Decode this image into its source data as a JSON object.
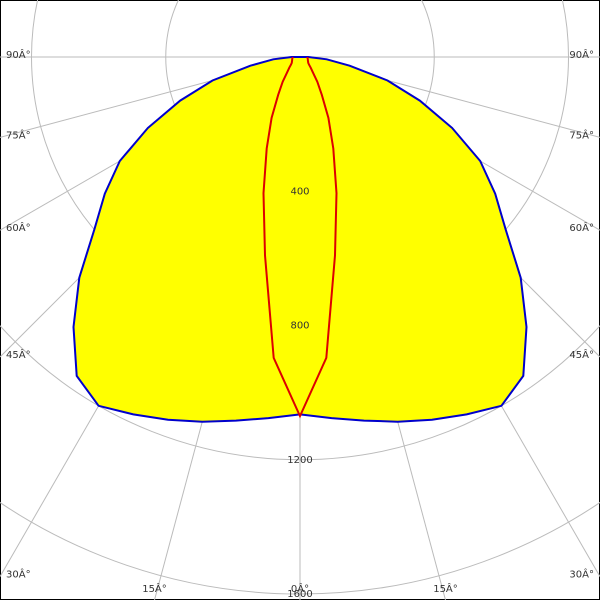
{
  "chart_data": {
    "type": "polar",
    "x": [
      -90,
      -85,
      -80,
      -75,
      -70,
      -65,
      -60,
      -55,
      -50,
      -45,
      -40,
      -35,
      -30,
      -25,
      -20,
      -15,
      -10,
      -5,
      0,
      5,
      10,
      15,
      20,
      25,
      30,
      35,
      40,
      45,
      50,
      55,
      60,
      65,
      70,
      75,
      80,
      85,
      90
    ],
    "series": [
      {
        "color": "#0000cc",
        "fill": "#ffff00",
        "values": [
          25,
          80,
          150,
          270,
          380,
          500,
          620,
          710,
          800,
          930,
          1050,
          1160,
          1200,
          1175,
          1150,
          1125,
          1100,
          1080,
          1065,
          1080,
          1100,
          1125,
          1150,
          1175,
          1200,
          1160,
          1050,
          930,
          800,
          710,
          620,
          500,
          380,
          270,
          150,
          80,
          25
        ]
      },
      {
        "color": "#dd0000",
        "values": [
          22,
          22,
          23,
          24,
          25,
          26,
          28,
          30,
          35,
          45,
          60,
          90,
          130,
          200,
          290,
          420,
          600,
          900,
          1070,
          900,
          600,
          420,
          290,
          200,
          130,
          90,
          60,
          45,
          35,
          30,
          28,
          26,
          25,
          24,
          23,
          22,
          22
        ]
      }
    ],
    "xticks": [
      {
        "value": -90,
        "label": "90Â°"
      },
      {
        "value": -75,
        "label": "75Â°"
      },
      {
        "value": -60,
        "label": "60Â°"
      },
      {
        "value": -45,
        "label": "45Â°"
      },
      {
        "value": -30,
        "label": "30Â°"
      },
      {
        "value": -15,
        "label": "15Â°"
      },
      {
        "value": 0,
        "label": "0Â°"
      },
      {
        "value": 15,
        "label": "15Â°"
      },
      {
        "value": 30,
        "label": "30Â°"
      },
      {
        "value": 45,
        "label": "45Â°"
      },
      {
        "value": 60,
        "label": "60Â°"
      },
      {
        "value": 75,
        "label": "75Â°"
      },
      {
        "value": 90,
        "label": "90Â°"
      }
    ],
    "rlim": [
      0,
      1600
    ],
    "rticks": [
      400,
      800,
      1200,
      1600
    ]
  }
}
